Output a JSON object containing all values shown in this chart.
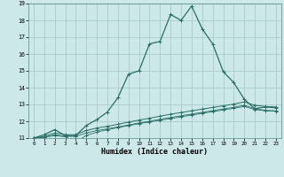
{
  "xlabel": "Humidex (Indice chaleur)",
  "bg_color": "#cce8e8",
  "grid_color": "#b8d8d8",
  "line_color": "#2a6e68",
  "xlim": [
    -0.5,
    23.5
  ],
  "ylim": [
    11,
    19
  ],
  "xtick_labels": [
    "0",
    "1",
    "2",
    "3",
    "4",
    "5",
    "6",
    "7",
    "8",
    "9",
    "10",
    "11",
    "12",
    "13",
    "14",
    "15",
    "16",
    "17",
    "18",
    "19",
    "20",
    "21",
    "22",
    "23"
  ],
  "xticks": [
    0,
    1,
    2,
    3,
    4,
    5,
    6,
    7,
    8,
    9,
    10,
    11,
    12,
    13,
    14,
    15,
    16,
    17,
    18,
    19,
    20,
    21,
    22,
    23
  ],
  "yticks": [
    11,
    12,
    13,
    14,
    15,
    16,
    17,
    18,
    19
  ],
  "main_x": [
    0,
    1,
    2,
    3,
    4,
    5,
    6,
    7,
    8,
    9,
    10,
    11,
    12,
    13,
    14,
    15,
    16,
    17,
    18,
    19,
    20,
    21,
    22,
    23
  ],
  "main_y": [
    11.0,
    11.2,
    11.5,
    11.15,
    11.15,
    11.75,
    12.1,
    12.55,
    13.4,
    14.8,
    15.0,
    16.6,
    16.75,
    18.35,
    18.0,
    18.85,
    17.5,
    16.6,
    14.95,
    14.3,
    13.3,
    12.75,
    12.85,
    12.8
  ],
  "line2_x": [
    0,
    1,
    2,
    3,
    4,
    5,
    6,
    7,
    8,
    9,
    10,
    11,
    12,
    13,
    14,
    15,
    16,
    17,
    18,
    19,
    20,
    21,
    22,
    23
  ],
  "line2_y": [
    11.0,
    11.1,
    11.3,
    11.2,
    11.2,
    11.45,
    11.6,
    11.7,
    11.82,
    11.95,
    12.07,
    12.18,
    12.3,
    12.42,
    12.52,
    12.62,
    12.72,
    12.82,
    12.92,
    13.02,
    13.15,
    12.95,
    12.88,
    12.85
  ],
  "line3_x": [
    0,
    1,
    2,
    3,
    4,
    5,
    6,
    7,
    8,
    9,
    10,
    11,
    12,
    13,
    14,
    15,
    16,
    17,
    18,
    19,
    20,
    21,
    22,
    23
  ],
  "line3_y": [
    11.0,
    11.05,
    11.2,
    11.1,
    11.1,
    11.3,
    11.45,
    11.55,
    11.66,
    11.78,
    11.9,
    12.0,
    12.12,
    12.22,
    12.33,
    12.43,
    12.53,
    12.63,
    12.73,
    12.83,
    12.95,
    12.75,
    12.65,
    12.62
  ],
  "line4_x": [
    0,
    1,
    2,
    3,
    4,
    5,
    6,
    7,
    8,
    9,
    10,
    11,
    12,
    13,
    14,
    15,
    16,
    17,
    18,
    19,
    20,
    21,
    22,
    23
  ],
  "line4_y": [
    11.0,
    11.05,
    11.15,
    11.08,
    10.78,
    11.15,
    11.35,
    11.5,
    11.62,
    11.74,
    11.85,
    11.96,
    12.06,
    12.16,
    12.26,
    12.37,
    12.47,
    12.57,
    12.67,
    12.77,
    12.88,
    12.7,
    12.62,
    12.6
  ]
}
